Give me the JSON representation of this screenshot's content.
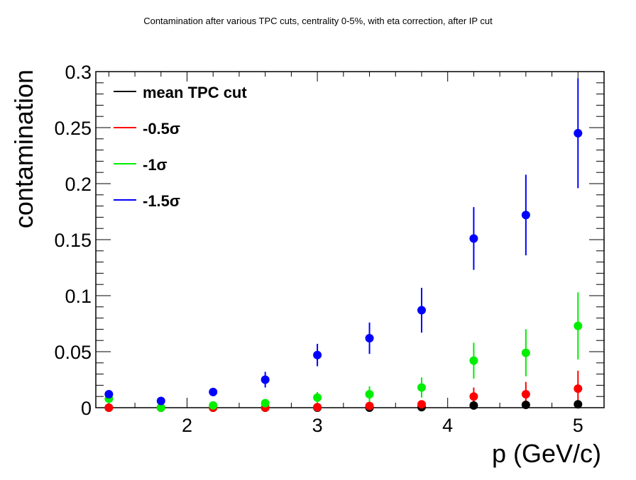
{
  "chart_data": {
    "type": "scatter",
    "title": "Contamination after various TPC cuts, centrality 0-5%, with eta correction, after IP cut",
    "xlabel": "p (GeV/c)",
    "ylabel": "contamination",
    "xlim": [
      1.3,
      5.2
    ],
    "ylim": [
      0,
      0.3
    ],
    "x_ticks": [
      2,
      3,
      4,
      5
    ],
    "x_tick_labels": [
      "2",
      "3",
      "4",
      "5"
    ],
    "y_ticks": [
      0,
      0.05,
      0.1,
      0.15,
      0.2,
      0.25,
      0.3
    ],
    "y_tick_labels": [
      "0",
      "0.05",
      "0.1",
      "0.15",
      "0.2",
      "0.25",
      "0.3"
    ],
    "grid": false,
    "legend_position": "top-left",
    "x": [
      1.4,
      1.8,
      2.2,
      2.6,
      3.0,
      3.4,
      3.8,
      4.2,
      4.6,
      5.0
    ],
    "series": [
      {
        "name": "mean TPC cut",
        "color": "#000000",
        "values": [
          0.0,
          0.0,
          0.0,
          0.0,
          0.0,
          0.0,
          0.0005,
          0.002,
          0.0025,
          0.003
        ],
        "errors": [
          0.0,
          0.0,
          0.0,
          0.0,
          0.0,
          0.0,
          0.0005,
          0.002,
          0.0025,
          0.003
        ]
      },
      {
        "name": "-0.5σ",
        "color": "#ff0000",
        "values": [
          0.0,
          0.0,
          0.0,
          0.0,
          0.0005,
          0.0015,
          0.003,
          0.01,
          0.012,
          0.017
        ],
        "errors": [
          0.0,
          0.0,
          0.0,
          0.0,
          0.0005,
          0.0015,
          0.003,
          0.008,
          0.011,
          0.016
        ]
      },
      {
        "name": "-1σ",
        "color": "#00ee00",
        "values": [
          0.008,
          0.0,
          0.002,
          0.004,
          0.009,
          0.012,
          0.018,
          0.042,
          0.049,
          0.073
        ],
        "errors": [
          0.0,
          0.0,
          0.002,
          0.003,
          0.005,
          0.007,
          0.009,
          0.016,
          0.021,
          0.03
        ]
      },
      {
        "name": "-1.5σ",
        "color": "#0000ff",
        "values": [
          0.012,
          0.006,
          0.014,
          0.025,
          0.047,
          0.062,
          0.087,
          0.151,
          0.172,
          0.245
        ],
        "errors": [
          0.0,
          0.0,
          0.0,
          0.007,
          0.01,
          0.014,
          0.02,
          0.028,
          0.036,
          0.049
        ]
      }
    ]
  }
}
